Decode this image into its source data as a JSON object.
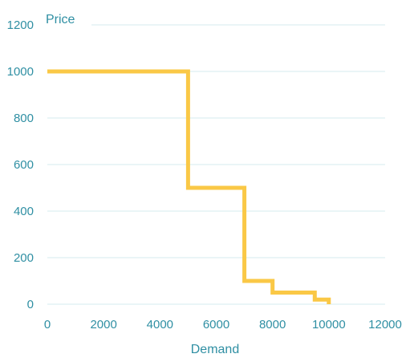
{
  "chart_data": {
    "type": "line",
    "step": true,
    "title": "",
    "xlabel": "Demand",
    "ylabel": "Price",
    "xlim": [
      0,
      12000
    ],
    "ylim": [
      0,
      1200
    ],
    "x_ticks": [
      0,
      2000,
      4000,
      6000,
      8000,
      10000,
      12000
    ],
    "y_ticks": [
      0,
      200,
      400,
      600,
      800,
      1000,
      1200
    ],
    "grid": true,
    "legend": "none",
    "series": [
      {
        "color": "#fac846",
        "points": [
          [
            0,
            1000
          ],
          [
            5000,
            1000
          ],
          [
            5000,
            500
          ],
          [
            7000,
            500
          ],
          [
            7000,
            100
          ],
          [
            8000,
            100
          ],
          [
            8000,
            50
          ],
          [
            9500,
            50
          ],
          [
            9500,
            20
          ],
          [
            10000,
            20
          ],
          [
            10000,
            0
          ]
        ]
      }
    ]
  }
}
